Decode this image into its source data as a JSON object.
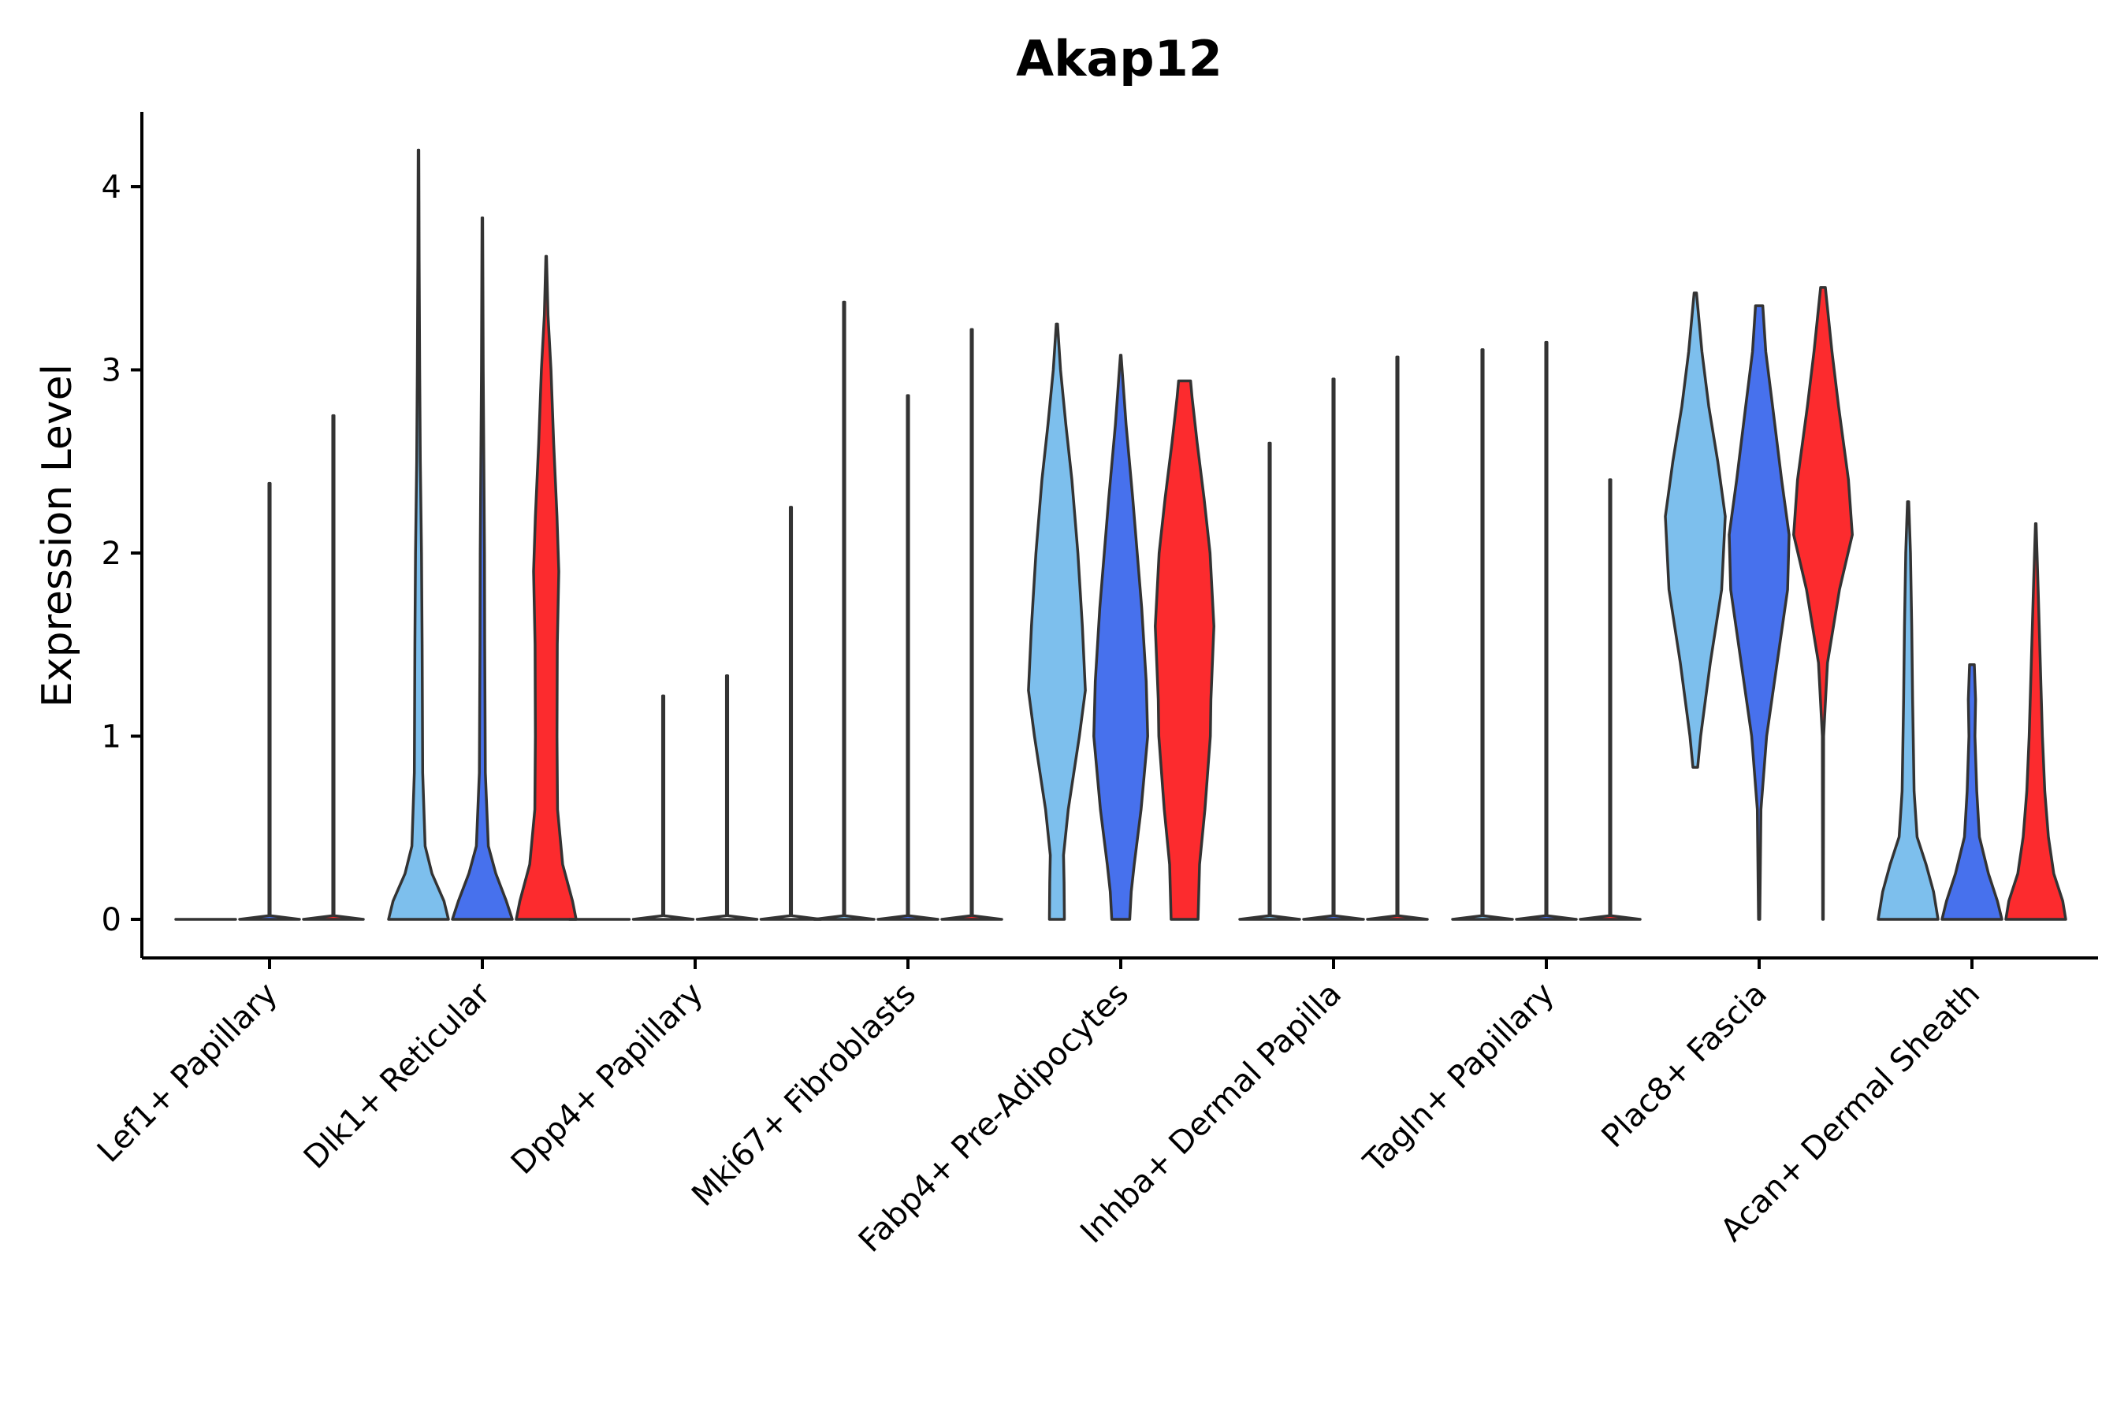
{
  "chart_data": {
    "type": "violin",
    "title": "Akap12",
    "xlabel": "",
    "ylabel": "Expression Level",
    "ylim": [
      -0.2,
      4.4
    ],
    "yticks": [
      0,
      1,
      2,
      3,
      4
    ],
    "grid": false,
    "legend": "none",
    "series_colors": [
      "#7dbfed",
      "#4771ed",
      "#fc2b2e"
    ],
    "categories": [
      "Lef1+ Papillary",
      "Dlk1+ Reticular",
      "Dpp4+ Papillary",
      "Mki67+ Fibroblasts",
      "Fabp4+ Pre-Adipocytes",
      "Inhba+ Dermal Papilla",
      "Tagln+ Papillary",
      "Plac8+ Fascia",
      "Acan+ Dermal Sheath"
    ],
    "violins": [
      [
        {
          "max": 0,
          "profile": [
            [
              0,
              1
            ]
          ]
        },
        {
          "max": 2.38,
          "profile": [
            [
              0,
              1
            ],
            [
              0.02,
              0.02
            ],
            [
              2.38,
              0.02
            ]
          ]
        },
        {
          "max": 2.75,
          "profile": [
            [
              0,
              1
            ],
            [
              0.02,
              0.02
            ],
            [
              2.75,
              0.02
            ]
          ]
        }
      ],
      [
        {
          "max": 4.2,
          "profile": [
            [
              0,
              1
            ],
            [
              0.1,
              0.85
            ],
            [
              0.25,
              0.45
            ],
            [
              0.4,
              0.22
            ],
            [
              0.8,
              0.14
            ],
            [
              1.5,
              0.12
            ],
            [
              2.0,
              0.1
            ],
            [
              2.5,
              0.06
            ],
            [
              3.0,
              0.04
            ],
            [
              3.6,
              0.02
            ],
            [
              4.2,
              0.01
            ]
          ]
        },
        {
          "max": 3.83,
          "profile": [
            [
              0,
              1
            ],
            [
              0.1,
              0.8
            ],
            [
              0.25,
              0.45
            ],
            [
              0.4,
              0.2
            ],
            [
              0.8,
              0.1
            ],
            [
              1.5,
              0.08
            ],
            [
              2.0,
              0.07
            ],
            [
              2.5,
              0.05
            ],
            [
              3.0,
              0.03
            ],
            [
              3.83,
              0.01
            ]
          ]
        },
        {
          "max": 3.62,
          "profile": [
            [
              0,
              1
            ],
            [
              0.1,
              0.88
            ],
            [
              0.3,
              0.55
            ],
            [
              0.6,
              0.38
            ],
            [
              1.0,
              0.36
            ],
            [
              1.5,
              0.37
            ],
            [
              1.9,
              0.42
            ],
            [
              2.2,
              0.36
            ],
            [
              2.6,
              0.25
            ],
            [
              3.0,
              0.16
            ],
            [
              3.3,
              0.06
            ],
            [
              3.62,
              0.01
            ]
          ]
        }
      ],
      [
        {
          "max": 0,
          "profile": [
            [
              0,
              1
            ]
          ]
        },
        {
          "max": 1.22,
          "profile": [
            [
              0,
              1
            ],
            [
              0.02,
              0.02
            ],
            [
              1.22,
              0.02
            ]
          ]
        },
        {
          "max": 1.33,
          "profile": [
            [
              0,
              1
            ],
            [
              0.02,
              0.02
            ],
            [
              1.33,
              0.02
            ]
          ]
        },
        {
          "max": 2.25,
          "profile": [
            [
              0,
              1
            ],
            [
              0.02,
              0.02
            ],
            [
              2.25,
              0.02
            ]
          ]
        }
      ],
      [
        {
          "max": 3.37,
          "profile": [
            [
              0,
              1
            ],
            [
              0.02,
              0.02
            ],
            [
              3.37,
              0.02
            ]
          ]
        },
        {
          "max": 2.86,
          "profile": [
            [
              0,
              1
            ],
            [
              0.02,
              0.02
            ],
            [
              2.86,
              0.02
            ]
          ]
        },
        {
          "max": 3.22,
          "profile": [
            [
              0,
              1
            ],
            [
              0.02,
              0.02
            ],
            [
              3.22,
              0.02
            ]
          ]
        }
      ],
      [
        {
          "max": 3.25,
          "profile": [
            [
              0,
              0.25
            ],
            [
              0.2,
              0.24
            ],
            [
              0.35,
              0.22
            ],
            [
              0.6,
              0.38
            ],
            [
              1.0,
              0.75
            ],
            [
              1.25,
              0.95
            ],
            [
              1.6,
              0.85
            ],
            [
              2.0,
              0.7
            ],
            [
              2.4,
              0.5
            ],
            [
              2.7,
              0.3
            ],
            [
              3.0,
              0.12
            ],
            [
              3.25,
              0.02
            ]
          ]
        },
        {
          "max": 3.08,
          "profile": [
            [
              0,
              0.3
            ],
            [
              0.15,
              0.35
            ],
            [
              0.3,
              0.45
            ],
            [
              0.6,
              0.68
            ],
            [
              1.0,
              0.9
            ],
            [
              1.3,
              0.85
            ],
            [
              1.7,
              0.7
            ],
            [
              2.0,
              0.55
            ],
            [
              2.3,
              0.4
            ],
            [
              2.7,
              0.18
            ],
            [
              3.08,
              0.01
            ]
          ]
        },
        {
          "max": 2.94,
          "profile": [
            [
              0,
              0.45
            ],
            [
              0.3,
              0.5
            ],
            [
              0.6,
              0.68
            ],
            [
              1.0,
              0.86
            ],
            [
              1.2,
              0.88
            ],
            [
              1.6,
              0.98
            ],
            [
              2.0,
              0.85
            ],
            [
              2.3,
              0.65
            ],
            [
              2.6,
              0.42
            ],
            [
              2.85,
              0.25
            ],
            [
              2.94,
              0.2
            ]
          ]
        }
      ],
      [
        {
          "max": 2.6,
          "profile": [
            [
              0,
              1
            ],
            [
              0.02,
              0.02
            ],
            [
              2.6,
              0.02
            ]
          ]
        },
        {
          "max": 2.95,
          "profile": [
            [
              0,
              1
            ],
            [
              0.02,
              0.02
            ],
            [
              2.95,
              0.02
            ]
          ]
        },
        {
          "max": 3.07,
          "profile": [
            [
              0,
              1
            ],
            [
              0.02,
              0.02
            ],
            [
              3.07,
              0.02
            ]
          ]
        }
      ],
      [
        {
          "max": 3.11,
          "profile": [
            [
              0,
              1
            ],
            [
              0.02,
              0.02
            ],
            [
              3.11,
              0.02
            ]
          ]
        },
        {
          "max": 3.15,
          "profile": [
            [
              0,
              1
            ],
            [
              0.02,
              0.02
            ],
            [
              3.15,
              0.02
            ]
          ]
        },
        {
          "max": 2.4,
          "profile": [
            [
              0,
              1
            ],
            [
              0.02,
              0.02
            ],
            [
              2.4,
              0.02
            ]
          ]
        }
      ],
      [
        {
          "min": 0.83,
          "max": 3.42,
          "profile": [
            [
              0.83,
              0.08
            ],
            [
              1.0,
              0.18
            ],
            [
              1.4,
              0.5
            ],
            [
              1.8,
              0.88
            ],
            [
              2.2,
              1.0
            ],
            [
              2.5,
              0.75
            ],
            [
              2.8,
              0.45
            ],
            [
              3.1,
              0.22
            ],
            [
              3.42,
              0.04
            ]
          ]
        },
        {
          "min": 0,
          "max": 3.35,
          "profile": [
            [
              0,
              0.02
            ],
            [
              0.6,
              0.06
            ],
            [
              1.0,
              0.25
            ],
            [
              1.4,
              0.6
            ],
            [
              1.8,
              0.95
            ],
            [
              2.1,
              1.0
            ],
            [
              2.4,
              0.75
            ],
            [
              2.8,
              0.45
            ],
            [
              3.1,
              0.22
            ],
            [
              3.35,
              0.12
            ]
          ]
        },
        {
          "min": 0,
          "max": 3.45,
          "profile": [
            [
              0,
              0.01
            ],
            [
              1.0,
              0.02
            ],
            [
              1.4,
              0.15
            ],
            [
              1.8,
              0.55
            ],
            [
              2.1,
              0.98
            ],
            [
              2.4,
              0.85
            ],
            [
              2.8,
              0.52
            ],
            [
              3.1,
              0.3
            ],
            [
              3.45,
              0.08
            ]
          ]
        }
      ],
      [
        {
          "max": 2.28,
          "profile": [
            [
              0,
              1
            ],
            [
              0.15,
              0.85
            ],
            [
              0.3,
              0.6
            ],
            [
              0.45,
              0.3
            ],
            [
              0.7,
              0.2
            ],
            [
              1.2,
              0.15
            ],
            [
              1.6,
              0.12
            ],
            [
              2.0,
              0.08
            ],
            [
              2.28,
              0.02
            ]
          ]
        },
        {
          "max": 1.39,
          "profile": [
            [
              0,
              1
            ],
            [
              0.1,
              0.85
            ],
            [
              0.25,
              0.55
            ],
            [
              0.45,
              0.25
            ],
            [
              0.7,
              0.16
            ],
            [
              1.0,
              0.1
            ],
            [
              1.2,
              0.12
            ],
            [
              1.39,
              0.08
            ]
          ]
        },
        {
          "max": 2.16,
          "profile": [
            [
              0,
              1
            ],
            [
              0.1,
              0.9
            ],
            [
              0.25,
              0.6
            ],
            [
              0.45,
              0.42
            ],
            [
              0.7,
              0.3
            ],
            [
              1.0,
              0.22
            ],
            [
              1.4,
              0.15
            ],
            [
              1.8,
              0.08
            ],
            [
              2.16,
              0.01
            ]
          ]
        }
      ]
    ]
  }
}
